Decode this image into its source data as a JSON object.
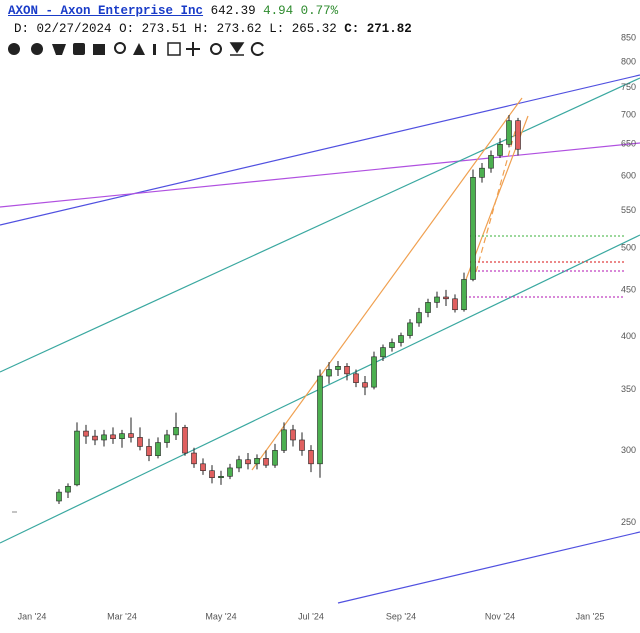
{
  "header": {
    "symbol": "AXON - Axon Enterprise Inc",
    "last": 642.39,
    "change": 4.94,
    "change_pct": "0.77%",
    "date_label": "D:",
    "date": "02/27/2024",
    "open": {
      "label": "O:",
      "value": 273.51
    },
    "high": {
      "label": "H:",
      "value": 273.62
    },
    "low": {
      "label": "L:",
      "value": 265.32
    },
    "close": {
      "label": "C:",
      "value": 271.82
    }
  },
  "chart_data": {
    "type": "candlestick",
    "log_scale": true,
    "up_color": "#4caf50",
    "down_color": "#e06060",
    "categories": [
      null,
      null,
      null,
      "Jan '24",
      null,
      null,
      null,
      null,
      null,
      null,
      null,
      null,
      null,
      "Mar '24",
      null,
      null,
      null,
      null,
      null,
      null,
      null,
      null,
      null,
      null,
      "May '24",
      null,
      null,
      null,
      null,
      null,
      null,
      null,
      null,
      null,
      "Jul '24",
      null,
      null,
      null,
      null,
      null,
      null,
      null,
      null,
      null,
      "Sep '24",
      null,
      null,
      null,
      null,
      null,
      null,
      null,
      null,
      null,
      null,
      "Nov '24",
      null,
      null,
      null,
      null,
      null,
      null,
      null,
      null,
      null,
      "Jan '25",
      null,
      null,
      null
    ],
    "open": [
      null,
      null,
      null,
      null,
      null,
      null,
      264,
      270,
      275,
      315,
      311,
      308,
      312,
      309,
      313,
      310,
      303,
      296,
      306,
      312,
      318,
      298,
      290,
      285,
      280,
      281,
      287,
      293,
      290,
      294,
      289,
      300,
      316,
      308,
      300,
      290,
      362,
      368,
      371,
      364,
      356,
      352,
      380,
      389,
      394,
      401,
      414,
      425,
      436,
      442,
      440,
      428,
      462,
      598,
      612,
      632,
      650,
      690,
      null,
      null,
      null,
      null,
      null,
      null,
      null,
      null,
      null,
      null,
      null
    ],
    "high": [
      null,
      null,
      null,
      null,
      null,
      null,
      272,
      276,
      322,
      320,
      316,
      316,
      318,
      316,
      326,
      318,
      309,
      310,
      316,
      330,
      320,
      302,
      294,
      289,
      285,
      290,
      296,
      298,
      297,
      300,
      305,
      322,
      320,
      314,
      304,
      368,
      375,
      376,
      374,
      368,
      362,
      385,
      392,
      398,
      404,
      418,
      430,
      440,
      448,
      450,
      445,
      470,
      610,
      620,
      640,
      660,
      700,
      695,
      null,
      null,
      null,
      null,
      null,
      null,
      null,
      null,
      null,
      null,
      null
    ],
    "low": [
      null,
      null,
      null,
      null,
      null,
      null,
      262,
      266,
      274,
      305,
      304,
      303,
      305,
      302,
      306,
      300,
      292,
      294,
      302,
      308,
      296,
      287,
      282,
      276,
      275,
      279,
      284,
      286,
      286,
      287,
      287,
      298,
      303,
      296,
      284,
      280,
      355,
      362,
      358,
      352,
      345,
      350,
      376,
      385,
      390,
      398,
      410,
      420,
      430,
      432,
      425,
      426,
      460,
      590,
      605,
      628,
      645,
      632,
      null,
      null,
      null,
      null,
      null,
      null,
      null,
      null,
      null,
      null,
      null
    ],
    "close": [
      null,
      null,
      null,
      null,
      null,
      null,
      270,
      274,
      315,
      311,
      308,
      312,
      309,
      313,
      310,
      303,
      296,
      306,
      312,
      318,
      298,
      290,
      285,
      280,
      281,
      287,
      293,
      290,
      294,
      289,
      300,
      316,
      308,
      300,
      290,
      362,
      368,
      371,
      364,
      356,
      352,
      380,
      389,
      394,
      401,
      414,
      425,
      436,
      442,
      440,
      428,
      462,
      598,
      612,
      632,
      650,
      690,
      642,
      null,
      null,
      null,
      null,
      null,
      null,
      null,
      null,
      null,
      null,
      null
    ],
    "ylim": [
      203,
      936
    ],
    "yticks": [
      250,
      300,
      350,
      400,
      450,
      500,
      550,
      600,
      650,
      700,
      750,
      800,
      850
    ]
  }
}
